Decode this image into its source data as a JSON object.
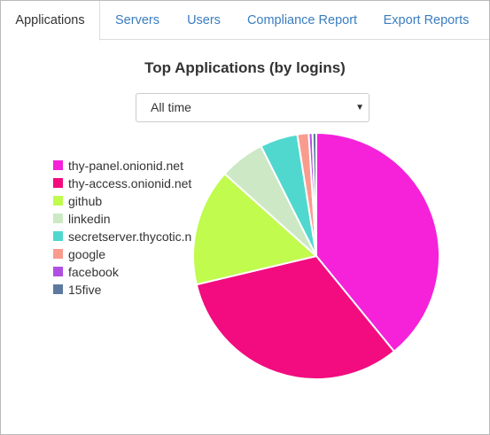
{
  "tabs": [
    {
      "label": "Applications",
      "active": true
    },
    {
      "label": "Servers",
      "active": false
    },
    {
      "label": "Users",
      "active": false
    },
    {
      "label": "Compliance Report",
      "active": false
    },
    {
      "label": "Export Reports",
      "active": false
    }
  ],
  "time_filter": {
    "selected": "All time"
  },
  "colors": {
    "tab_link": "#3a7dbf",
    "text": "#333333"
  },
  "chart_data": {
    "type": "pie",
    "title": "Top Applications (by logins)",
    "legend_position": "left",
    "categories": [
      "thy-panel.onionid.net",
      "thy-access.onionid.net",
      "github",
      "linkedin",
      "secretserver.thycotic.net",
      "google",
      "facebook",
      "15five"
    ],
    "legend_labels": [
      "thy-panel.onionid.net",
      "thy-access.onionid.net",
      "github",
      "linkedin",
      "secretserver.thycotic.n",
      "google",
      "facebook",
      "15five"
    ],
    "values": [
      39.5,
      32.5,
      15.5,
      6.0,
      5.0,
      1.5,
      0.5,
      0.5
    ],
    "unit": "percent of logins (estimated)",
    "colors": [
      "#f522d9",
      "#f20c7f",
      "#c0fb4e",
      "#cde8c5",
      "#50d8cf",
      "#f99c8e",
      "#b04fe2",
      "#5d7a9e"
    ]
  }
}
